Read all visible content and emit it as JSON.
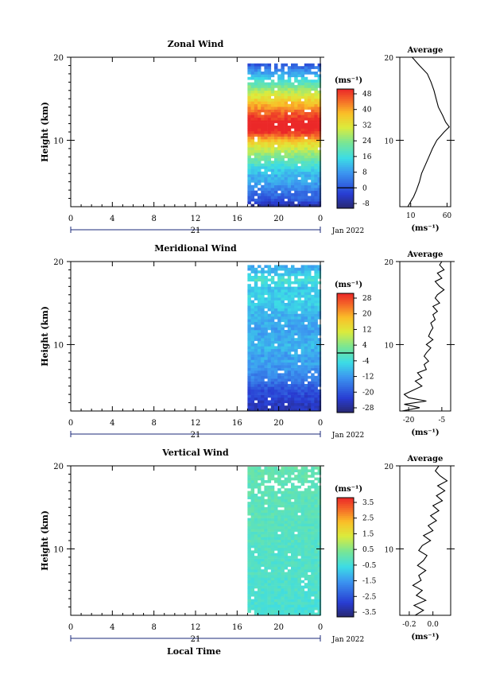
{
  "figure": {
    "xlabel": "Local Time",
    "ylabel": "Height (km)",
    "date_label": "Jan 2022",
    "day_label": "21",
    "unit_label": "(ms⁻¹)",
    "avg_title": "Average",
    "avg_xlabel": "(ms⁻¹)"
  },
  "chart_data": [
    {
      "type": "heatmap",
      "title": "Zonal Wind",
      "x_ticks": [
        "0",
        "4",
        "8",
        "12",
        "16",
        "20",
        "0"
      ],
      "y_ticks": [
        "20",
        "10"
      ],
      "xlim": [
        0,
        24
      ],
      "ylim": [
        2,
        20
      ],
      "data_start_hour": 17,
      "data_top_km": 19.5,
      "colorbar": {
        "ticks": [
          "48",
          "40",
          "32",
          "24",
          "16",
          "8",
          "0",
          "-8"
        ],
        "min": -8,
        "max": 48,
        "zero_line": true
      },
      "profile": [
        [
          2,
          -8
        ],
        [
          3,
          2
        ],
        [
          4,
          5
        ],
        [
          5,
          10
        ],
        [
          6,
          12
        ],
        [
          7,
          16
        ],
        [
          8,
          22
        ],
        [
          9,
          28
        ],
        [
          10,
          34
        ],
        [
          11,
          46
        ],
        [
          12,
          52
        ],
        [
          13,
          46
        ],
        [
          14,
          40
        ],
        [
          15,
          34
        ],
        [
          16,
          28
        ],
        [
          17,
          20
        ],
        [
          18,
          12
        ],
        [
          19,
          4
        ],
        [
          20,
          -4
        ]
      ],
      "average": {
        "title": "Average",
        "x_ticks": [
          "10",
          "60"
        ],
        "xlim": [
          -5,
          65
        ],
        "y_ticks": [
          "20",
          "10"
        ],
        "points": [
          [
            2,
            6
          ],
          [
            2.6,
            10
          ],
          [
            3.2,
            14
          ],
          [
            4,
            18
          ],
          [
            5,
            22
          ],
          [
            6,
            25
          ],
          [
            7,
            30
          ],
          [
            8,
            35
          ],
          [
            9,
            40
          ],
          [
            10,
            46
          ],
          [
            10.6,
            52
          ],
          [
            11,
            56
          ],
          [
            11.6,
            63
          ],
          [
            12.2,
            58
          ],
          [
            13,
            54
          ],
          [
            14,
            48
          ],
          [
            15,
            45
          ],
          [
            16,
            42
          ],
          [
            17,
            38
          ],
          [
            18,
            33
          ],
          [
            19,
            22
          ],
          [
            20,
            12
          ]
        ]
      }
    },
    {
      "type": "heatmap",
      "title": "Meridional Wind",
      "x_ticks": [
        "0",
        "4",
        "8",
        "12",
        "16",
        "20",
        "0"
      ],
      "y_ticks": [
        "20",
        "10"
      ],
      "xlim": [
        0,
        24
      ],
      "ylim": [
        2,
        20
      ],
      "data_start_hour": 17,
      "data_top_km": 19.8,
      "colorbar": {
        "ticks": [
          "28",
          "20",
          "12",
          "4",
          "-4",
          "-12",
          "-20",
          "-28"
        ],
        "min": -28,
        "max": 28,
        "zero_line": true
      },
      "profile": [
        [
          2,
          -24
        ],
        [
          3,
          -22
        ],
        [
          4,
          -20
        ],
        [
          5,
          -18
        ],
        [
          6,
          -14
        ],
        [
          7,
          -12
        ],
        [
          8,
          -10
        ],
        [
          9,
          -10
        ],
        [
          10,
          -8
        ],
        [
          11,
          -9
        ],
        [
          12,
          -10
        ],
        [
          13,
          -9
        ],
        [
          14,
          -8
        ],
        [
          15,
          -6
        ],
        [
          16,
          -5
        ],
        [
          17,
          -7
        ],
        [
          18,
          -2
        ],
        [
          19,
          -8
        ],
        [
          20,
          -10
        ]
      ],
      "average": {
        "title": "Average",
        "x_ticks": [
          "-20",
          "-5"
        ],
        "xlim": [
          -24,
          -1
        ],
        "y_ticks": [
          "20",
          "10"
        ],
        "points": [
          [
            2,
            -23
          ],
          [
            2.4,
            -15
          ],
          [
            2.8,
            -22
          ],
          [
            3.2,
            -12
          ],
          [
            3.6,
            -20
          ],
          [
            4,
            -22
          ],
          [
            4.5,
            -18
          ],
          [
            5,
            -14
          ],
          [
            5.6,
            -17
          ],
          [
            6,
            -14
          ],
          [
            6.6,
            -16
          ],
          [
            7,
            -12
          ],
          [
            7.6,
            -13
          ],
          [
            8,
            -11
          ],
          [
            8.6,
            -13
          ],
          [
            9,
            -12
          ],
          [
            9.6,
            -10
          ],
          [
            10,
            -12
          ],
          [
            10.6,
            -9
          ],
          [
            11,
            -11
          ],
          [
            11.6,
            -10
          ],
          [
            12,
            -9
          ],
          [
            12.6,
            -10
          ],
          [
            13,
            -8
          ],
          [
            13.6,
            -9
          ],
          [
            14,
            -7
          ],
          [
            14.6,
            -9
          ],
          [
            15,
            -6
          ],
          [
            15.6,
            -8
          ],
          [
            16,
            -7
          ],
          [
            16.6,
            -4
          ],
          [
            17,
            -6
          ],
          [
            17.6,
            -8
          ],
          [
            18,
            -5
          ],
          [
            18.6,
            -7
          ],
          [
            19,
            -4
          ],
          [
            19.6,
            -6
          ],
          [
            20,
            -5
          ]
        ]
      }
    },
    {
      "type": "heatmap",
      "title": "Vertical Wind",
      "x_ticks": [
        "0",
        "4",
        "8",
        "12",
        "16",
        "20",
        "0"
      ],
      "y_ticks": [
        "20",
        "10"
      ],
      "xlim": [
        0,
        24
      ],
      "ylim": [
        2,
        20
      ],
      "data_start_hour": 17,
      "data_top_km": 20,
      "colorbar": {
        "ticks": [
          "3.5",
          "2.5",
          "1.5",
          "0.5",
          "-0.5",
          "-1.5",
          "-2.5",
          "-3.5"
        ],
        "min": -4,
        "max": 4,
        "zero_line": false
      },
      "profile": [
        [
          2,
          -0.4
        ],
        [
          6,
          -0.3
        ],
        [
          10,
          -0.2
        ],
        [
          14,
          -0.1
        ],
        [
          18,
          0.0
        ],
        [
          20,
          0.1
        ]
      ],
      "average": {
        "title": "Average",
        "x_ticks": [
          "-0.2",
          "0.0"
        ],
        "xlim": [
          -0.28,
          0.15
        ],
        "y_ticks": [
          "20",
          "10"
        ],
        "points": [
          [
            2,
            -0.15
          ],
          [
            2.6,
            -0.08
          ],
          [
            3.2,
            -0.16
          ],
          [
            3.8,
            -0.06
          ],
          [
            4.4,
            -0.14
          ],
          [
            5,
            -0.09
          ],
          [
            5.6,
            -0.17
          ],
          [
            6.2,
            -0.1
          ],
          [
            6.8,
            -0.12
          ],
          [
            7.4,
            -0.06
          ],
          [
            8,
            -0.13
          ],
          [
            8.6,
            -0.08
          ],
          [
            9.2,
            -0.05
          ],
          [
            9.8,
            -0.12
          ],
          [
            10.4,
            -0.09
          ],
          [
            11,
            -0.02
          ],
          [
            11.6,
            -0.08
          ],
          [
            12.2,
            0.0
          ],
          [
            12.8,
            -0.04
          ],
          [
            13.4,
            0.03
          ],
          [
            14,
            -0.02
          ],
          [
            14.6,
            0.05
          ],
          [
            15.2,
            0.0
          ],
          [
            15.8,
            0.08
          ],
          [
            16.4,
            0.03
          ],
          [
            17,
            0.1
          ],
          [
            17.6,
            0.04
          ],
          [
            18.2,
            0.12
          ],
          [
            18.8,
            0.06
          ],
          [
            19.4,
            0.02
          ],
          [
            20,
            0.05
          ]
        ]
      }
    }
  ]
}
